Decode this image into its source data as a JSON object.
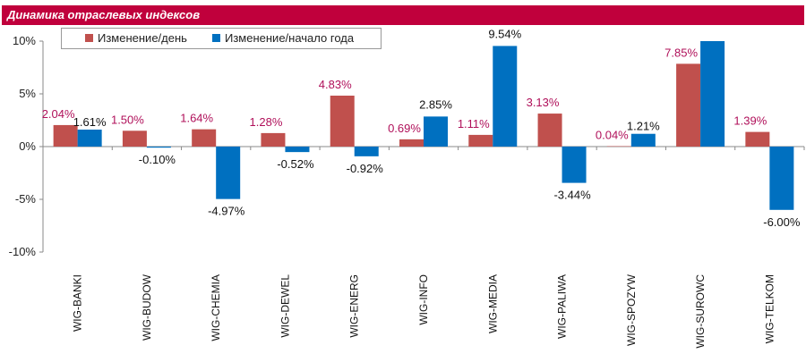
{
  "header": {
    "title": "Динамика отраслевых индексов"
  },
  "colors": {
    "title_bg": "#c0003c",
    "series_day": "#c0504d",
    "series_year": "#0070c0",
    "label_day": "#b0105a",
    "label_year": "#111111"
  },
  "chart_data": {
    "type": "bar",
    "title": "Динамика отраслевых индексов",
    "categories": [
      "WIG-BANKI",
      "WIG-BUDOW",
      "WIG-CHEMIA",
      "WIG-DEWEL",
      "WIG-ENERG",
      "WIG-INFO",
      "WIG-MEDIA",
      "WIG-PALIWA",
      "WIG-SPOZYW",
      "WIG-SUROWC",
      "WIG-TELKOM"
    ],
    "series": [
      {
        "name": "Изменение/день",
        "values": [
          2.04,
          1.5,
          1.64,
          1.28,
          4.83,
          0.69,
          1.11,
          3.13,
          0.04,
          7.85,
          1.39
        ],
        "labels": [
          "2.04%",
          "1.50%",
          "1.64%",
          "1.28%",
          "4.83%",
          "0.69%",
          "1.11%",
          "3.13%",
          "0.04%",
          "7.85%",
          "1.39%"
        ]
      },
      {
        "name": "Изменение/начало года",
        "values": [
          1.61,
          -0.1,
          -4.97,
          -0.52,
          -0.92,
          2.85,
          9.54,
          -3.44,
          1.21,
          10.0,
          -6.0
        ],
        "labels": [
          "1.61%",
          "-0.10%",
          "-4.97%",
          "-0.52%",
          "-0.92%",
          "2.85%",
          "9.54%",
          "-3.44%",
          "1.21%",
          "",
          ""
        ]
      }
    ],
    "extra_label": {
      "series": 1,
      "index": 10,
      "text": "-6.00%"
    },
    "yticks": [
      "10%",
      "5%",
      "0%",
      "-5%",
      "-10%"
    ],
    "ylim": [
      -10,
      10
    ],
    "legend_position": "top-left"
  }
}
